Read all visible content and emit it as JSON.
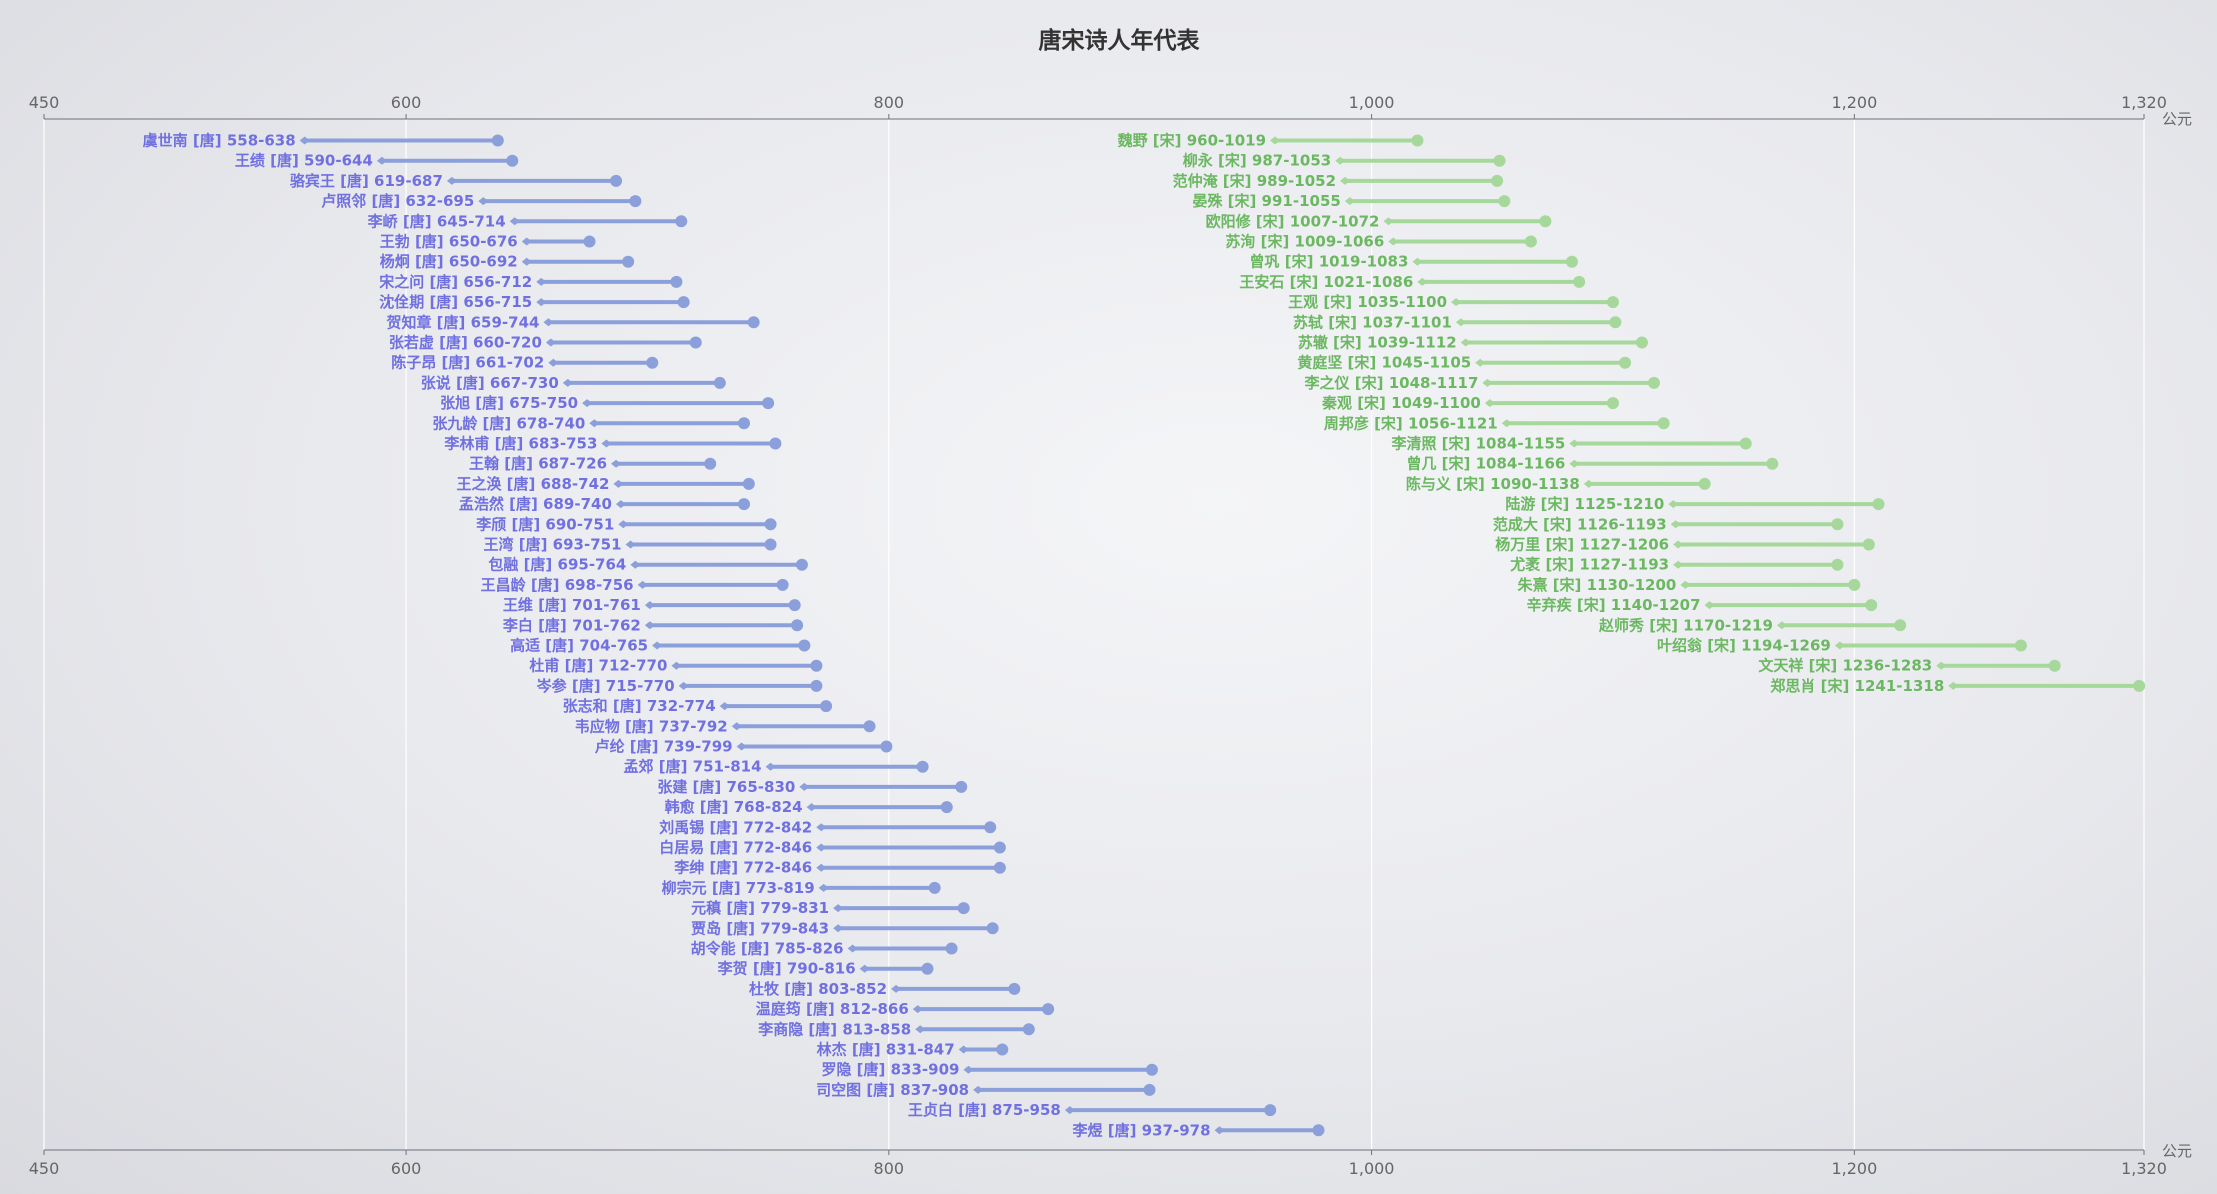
{
  "chart_data": {
    "type": "range-bar",
    "title": "唐宋诗人年代表",
    "x_unit": "公元",
    "xlim": [
      450,
      1320
    ],
    "x_ticks": [
      450,
      600,
      800,
      1000,
      1200,
      1320
    ],
    "x_tick_labels": [
      "450",
      "600",
      "800",
      "1,000",
      "1,200",
      "1,320"
    ],
    "grid": true,
    "colors": {
      "唐": "#8b9fdb",
      "宋": "#a5d89a",
      "唐_text": "#7070e0",
      "宋_text": "#6cb862"
    },
    "series": [
      {
        "name": "唐",
        "data": [
          {
            "name": "虞世南",
            "dynasty": "唐",
            "start": 558,
            "end": 638
          },
          {
            "name": "王绩",
            "dynasty": "唐",
            "start": 590,
            "end": 644
          },
          {
            "name": "骆宾王",
            "dynasty": "唐",
            "start": 619,
            "end": 687
          },
          {
            "name": "卢照邻",
            "dynasty": "唐",
            "start": 632,
            "end": 695
          },
          {
            "name": "李峤",
            "dynasty": "唐",
            "start": 645,
            "end": 714
          },
          {
            "name": "王勃",
            "dynasty": "唐",
            "start": 650,
            "end": 676
          },
          {
            "name": "杨炯",
            "dynasty": "唐",
            "start": 650,
            "end": 692
          },
          {
            "name": "宋之问",
            "dynasty": "唐",
            "start": 656,
            "end": 712
          },
          {
            "name": "沈佺期",
            "dynasty": "唐",
            "start": 656,
            "end": 715
          },
          {
            "name": "贺知章",
            "dynasty": "唐",
            "start": 659,
            "end": 744
          },
          {
            "name": "张若虚",
            "dynasty": "唐",
            "start": 660,
            "end": 720
          },
          {
            "name": "陈子昂",
            "dynasty": "唐",
            "start": 661,
            "end": 702
          },
          {
            "name": "张说",
            "dynasty": "唐",
            "start": 667,
            "end": 730
          },
          {
            "name": "张旭",
            "dynasty": "唐",
            "start": 675,
            "end": 750
          },
          {
            "name": "张九龄",
            "dynasty": "唐",
            "start": 678,
            "end": 740
          },
          {
            "name": "李林甫",
            "dynasty": "唐",
            "start": 683,
            "end": 753
          },
          {
            "name": "王翰",
            "dynasty": "唐",
            "start": 687,
            "end": 726
          },
          {
            "name": "王之涣",
            "dynasty": "唐",
            "start": 688,
            "end": 742
          },
          {
            "name": "孟浩然",
            "dynasty": "唐",
            "start": 689,
            "end": 740
          },
          {
            "name": "李颀",
            "dynasty": "唐",
            "start": 690,
            "end": 751
          },
          {
            "name": "王湾",
            "dynasty": "唐",
            "start": 693,
            "end": 751
          },
          {
            "name": "包融",
            "dynasty": "唐",
            "start": 695,
            "end": 764
          },
          {
            "name": "王昌龄",
            "dynasty": "唐",
            "start": 698,
            "end": 756
          },
          {
            "name": "王维",
            "dynasty": "唐",
            "start": 701,
            "end": 761
          },
          {
            "name": "李白",
            "dynasty": "唐",
            "start": 701,
            "end": 762
          },
          {
            "name": "高适",
            "dynasty": "唐",
            "start": 704,
            "end": 765
          },
          {
            "name": "杜甫",
            "dynasty": "唐",
            "start": 712,
            "end": 770
          },
          {
            "name": "岑参",
            "dynasty": "唐",
            "start": 715,
            "end": 770
          },
          {
            "name": "张志和",
            "dynasty": "唐",
            "start": 732,
            "end": 774
          },
          {
            "name": "韦应物",
            "dynasty": "唐",
            "start": 737,
            "end": 792
          },
          {
            "name": "卢纶",
            "dynasty": "唐",
            "start": 739,
            "end": 799
          },
          {
            "name": "孟郊",
            "dynasty": "唐",
            "start": 751,
            "end": 814
          },
          {
            "name": "张建",
            "dynasty": "唐",
            "start": 765,
            "end": 830
          },
          {
            "name": "韩愈",
            "dynasty": "唐",
            "start": 768,
            "end": 824
          },
          {
            "name": "刘禹锡",
            "dynasty": "唐",
            "start": 772,
            "end": 842
          },
          {
            "name": "白居易",
            "dynasty": "唐",
            "start": 772,
            "end": 846
          },
          {
            "name": "李绅",
            "dynasty": "唐",
            "start": 772,
            "end": 846
          },
          {
            "name": "柳宗元",
            "dynasty": "唐",
            "start": 773,
            "end": 819
          },
          {
            "name": "元稹",
            "dynasty": "唐",
            "start": 779,
            "end": 831
          },
          {
            "name": "贾岛",
            "dynasty": "唐",
            "start": 779,
            "end": 843
          },
          {
            "name": "胡令能",
            "dynasty": "唐",
            "start": 785,
            "end": 826
          },
          {
            "name": "李贺",
            "dynasty": "唐",
            "start": 790,
            "end": 816
          },
          {
            "name": "杜牧",
            "dynasty": "唐",
            "start": 803,
            "end": 852
          },
          {
            "name": "温庭筠",
            "dynasty": "唐",
            "start": 812,
            "end": 866
          },
          {
            "name": "李商隐",
            "dynasty": "唐",
            "start": 813,
            "end": 858
          },
          {
            "name": "林杰",
            "dynasty": "唐",
            "start": 831,
            "end": 847
          },
          {
            "name": "罗隐",
            "dynasty": "唐",
            "start": 833,
            "end": 909
          },
          {
            "name": "司空图",
            "dynasty": "唐",
            "start": 837,
            "end": 908
          },
          {
            "name": "王贞白",
            "dynasty": "唐",
            "start": 875,
            "end": 958
          },
          {
            "name": "李煜",
            "dynasty": "唐",
            "start": 937,
            "end": 978
          }
        ]
      },
      {
        "name": "宋",
        "data": [
          {
            "name": "魏野",
            "dynasty": "宋",
            "start": 960,
            "end": 1019
          },
          {
            "name": "柳永",
            "dynasty": "宋",
            "start": 987,
            "end": 1053
          },
          {
            "name": "范仲淹",
            "dynasty": "宋",
            "start": 989,
            "end": 1052
          },
          {
            "name": "晏殊",
            "dynasty": "宋",
            "start": 991,
            "end": 1055
          },
          {
            "name": "欧阳修",
            "dynasty": "宋",
            "start": 1007,
            "end": 1072
          },
          {
            "name": "苏洵",
            "dynasty": "宋",
            "start": 1009,
            "end": 1066
          },
          {
            "name": "曾巩",
            "dynasty": "宋",
            "start": 1019,
            "end": 1083
          },
          {
            "name": "王安石",
            "dynasty": "宋",
            "start": 1021,
            "end": 1086
          },
          {
            "name": "王观",
            "dynasty": "宋",
            "start": 1035,
            "end": 1100
          },
          {
            "name": "苏轼",
            "dynasty": "宋",
            "start": 1037,
            "end": 1101
          },
          {
            "name": "苏辙",
            "dynasty": "宋",
            "start": 1039,
            "end": 1112
          },
          {
            "name": "黄庭坚",
            "dynasty": "宋",
            "start": 1045,
            "end": 1105
          },
          {
            "name": "李之仪",
            "dynasty": "宋",
            "start": 1048,
            "end": 1117
          },
          {
            "name": "秦观",
            "dynasty": "宋",
            "start": 1049,
            "end": 1100
          },
          {
            "name": "周邦彦",
            "dynasty": "宋",
            "start": 1056,
            "end": 1121
          },
          {
            "name": "李清照",
            "dynasty": "宋",
            "start": 1084,
            "end": 1155
          },
          {
            "name": "曾几",
            "dynasty": "宋",
            "start": 1084,
            "end": 1166
          },
          {
            "name": "陈与义",
            "dynasty": "宋",
            "start": 1090,
            "end": 1138
          },
          {
            "name": "陆游",
            "dynasty": "宋",
            "start": 1125,
            "end": 1210
          },
          {
            "name": "范成大",
            "dynasty": "宋",
            "start": 1126,
            "end": 1193
          },
          {
            "name": "杨万里",
            "dynasty": "宋",
            "start": 1127,
            "end": 1206
          },
          {
            "name": "尤袤",
            "dynasty": "宋",
            "start": 1127,
            "end": 1193
          },
          {
            "name": "朱熹",
            "dynasty": "宋",
            "start": 1130,
            "end": 1200
          },
          {
            "name": "辛弃疾",
            "dynasty": "宋",
            "start": 1140,
            "end": 1207
          },
          {
            "name": "赵师秀",
            "dynasty": "宋",
            "start": 1170,
            "end": 1219
          },
          {
            "name": "叶绍翁",
            "dynasty": "宋",
            "start": 1194,
            "end": 1269
          },
          {
            "name": "文天祥",
            "dynasty": "宋",
            "start": 1236,
            "end": 1283
          },
          {
            "name": "郑思肖",
            "dynasty": "宋",
            "start": 1241,
            "end": 1318
          }
        ]
      }
    ]
  }
}
